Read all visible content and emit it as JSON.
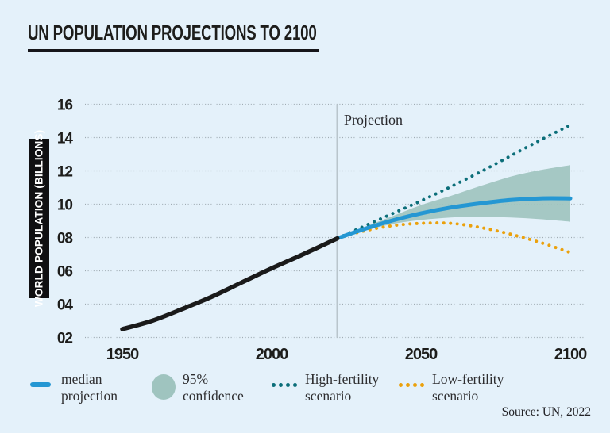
{
  "title": "UN POPULATION PROJECTIONS TO 2100",
  "colors": {
    "background": "#e4f1fa",
    "ink": "#1d1d1b",
    "grid": "#9fabb2",
    "projection_line": "#b9c5cc",
    "historical": "#1a1a1a",
    "median": "#2497d3",
    "band": "#9fc4bf",
    "high": "#0b6e79",
    "low": "#eba10c"
  },
  "chart_data": {
    "type": "line",
    "title": "UN POPULATION PROJECTIONS TO 2100",
    "xlabel": "",
    "ylabel": "WORLD POPULATION (BILLIONS)",
    "xlim": [
      1950,
      2100
    ],
    "ylim": [
      2,
      16
    ],
    "grid": "dotted horizontal",
    "annotation": "Projection",
    "projection_start_year": 2022,
    "y_ticks": [
      {
        "label": "16",
        "value": 16
      },
      {
        "label": "14",
        "value": 14
      },
      {
        "label": "12",
        "value": 12
      },
      {
        "label": "10",
        "value": 10
      },
      {
        "label": "08",
        "value": 8
      },
      {
        "label": "06",
        "value": 6
      },
      {
        "label": "04",
        "value": 4
      },
      {
        "label": "02",
        "value": 2
      }
    ],
    "x_ticks": [
      {
        "label": "1950",
        "year": 1950
      },
      {
        "label": "2000",
        "year": 2000
      },
      {
        "label": "2050",
        "year": 2050
      },
      {
        "label": "2100",
        "year": 2100
      }
    ],
    "series": [
      {
        "name": "historical",
        "style": "solid",
        "color": "#1a1a1a",
        "points": [
          [
            1950,
            2.5
          ],
          [
            1960,
            3.0
          ],
          [
            1970,
            3.7
          ],
          [
            1980,
            4.45
          ],
          [
            1990,
            5.3
          ],
          [
            2000,
            6.15
          ],
          [
            2010,
            6.95
          ],
          [
            2022,
            7.95
          ]
        ]
      },
      {
        "name": "median projection",
        "style": "solid",
        "color": "#2497d3",
        "points": [
          [
            2022,
            7.95
          ],
          [
            2030,
            8.45
          ],
          [
            2040,
            9.0
          ],
          [
            2050,
            9.45
          ],
          [
            2060,
            9.8
          ],
          [
            2070,
            10.05
          ],
          [
            2080,
            10.25
          ],
          [
            2090,
            10.35
          ],
          [
            2100,
            10.35
          ]
        ]
      },
      {
        "name": "95% confidence",
        "style": "band",
        "color": "#9fc4bf",
        "upper": [
          [
            2022,
            7.95
          ],
          [
            2030,
            8.55
          ],
          [
            2040,
            9.25
          ],
          [
            2050,
            9.95
          ],
          [
            2060,
            10.5
          ],
          [
            2070,
            11.1
          ],
          [
            2080,
            11.65
          ],
          [
            2090,
            12.05
          ],
          [
            2100,
            12.35
          ]
        ],
        "lower": [
          [
            2022,
            7.95
          ],
          [
            2030,
            8.35
          ],
          [
            2040,
            8.8
          ],
          [
            2050,
            9.05
          ],
          [
            2060,
            9.2
          ],
          [
            2070,
            9.25
          ],
          [
            2080,
            9.2
          ],
          [
            2090,
            9.1
          ],
          [
            2100,
            8.95
          ]
        ]
      },
      {
        "name": "High-fertility scenario",
        "style": "dotted",
        "color": "#0b6e79",
        "points": [
          [
            2022,
            7.95
          ],
          [
            2030,
            8.6
          ],
          [
            2040,
            9.4
          ],
          [
            2050,
            10.2
          ],
          [
            2060,
            11.05
          ],
          [
            2070,
            11.95
          ],
          [
            2080,
            12.9
          ],
          [
            2090,
            13.85
          ],
          [
            2100,
            14.75
          ]
        ]
      },
      {
        "name": "Low-fertility scenario",
        "style": "dotted",
        "color": "#eba10c",
        "points": [
          [
            2022,
            7.95
          ],
          [
            2030,
            8.35
          ],
          [
            2040,
            8.7
          ],
          [
            2050,
            8.85
          ],
          [
            2060,
            8.85
          ],
          [
            2070,
            8.6
          ],
          [
            2080,
            8.2
          ],
          [
            2090,
            7.7
          ],
          [
            2100,
            7.1
          ]
        ]
      }
    ],
    "source": "Source: UN, 2022"
  },
  "legend": {
    "items": [
      {
        "label": "median\nprojection",
        "marker": "line",
        "color": "#2497d3"
      },
      {
        "label": "95%\nconfidence",
        "marker": "circle",
        "color": "#9fc4bf"
      },
      {
        "label": "High-fertility\nscenario",
        "marker": "dots",
        "color": "#0b6e79"
      },
      {
        "label": "Low-fertility\nscenario",
        "marker": "dots",
        "color": "#eba10c"
      }
    ]
  }
}
